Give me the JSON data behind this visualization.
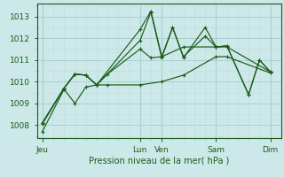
{
  "xlabel": "Pression niveau de la mer( hPa )",
  "bg_color": "#cce8e8",
  "grid_color_major": "#aacfcf",
  "grid_color_minor": "#c0dede",
  "line_color": "#1a5c1a",
  "ylim": [
    1007.4,
    1013.6
  ],
  "yticks": [
    1008,
    1009,
    1010,
    1011,
    1012,
    1013
  ],
  "day_labels": [
    "Jeu",
    "Lun",
    "Ven",
    "Sam",
    "Dim"
  ],
  "day_positions": [
    0,
    9,
    11,
    16,
    21
  ],
  "xlim": [
    -0.5,
    22
  ],
  "series": [
    {
      "x": [
        0,
        2,
        3,
        4,
        5,
        6,
        9,
        11,
        13,
        16,
        17,
        21
      ],
      "y": [
        1007.7,
        1009.65,
        1009.0,
        1009.75,
        1009.85,
        1009.85,
        1009.85,
        1010.0,
        1010.3,
        1011.15,
        1011.15,
        1010.4
      ]
    },
    {
      "x": [
        0,
        2,
        3,
        4,
        5,
        6,
        9,
        10,
        11,
        13,
        16,
        17,
        21
      ],
      "y": [
        1008.1,
        1009.7,
        1010.35,
        1010.3,
        1009.85,
        1010.35,
        1011.5,
        1011.1,
        1011.15,
        1011.6,
        1011.6,
        1011.6,
        1010.45
      ]
    },
    {
      "x": [
        0,
        2,
        3,
        4,
        5,
        9,
        10,
        11,
        12,
        13,
        15,
        16,
        17,
        19,
        20,
        21
      ],
      "y": [
        1008.1,
        1009.7,
        1010.35,
        1010.3,
        1009.85,
        1011.9,
        1013.2,
        1011.1,
        1012.5,
        1011.15,
        1012.1,
        1011.6,
        1011.65,
        1009.4,
        1011.0,
        1010.45
      ]
    },
    {
      "x": [
        0,
        2,
        3,
        4,
        5,
        9,
        10,
        11,
        12,
        13,
        15,
        16,
        17,
        19,
        20,
        21
      ],
      "y": [
        1008.05,
        1009.7,
        1010.35,
        1010.3,
        1009.85,
        1012.4,
        1013.25,
        1011.15,
        1012.5,
        1011.1,
        1012.5,
        1011.6,
        1011.65,
        1009.4,
        1011.0,
        1010.45
      ]
    }
  ]
}
